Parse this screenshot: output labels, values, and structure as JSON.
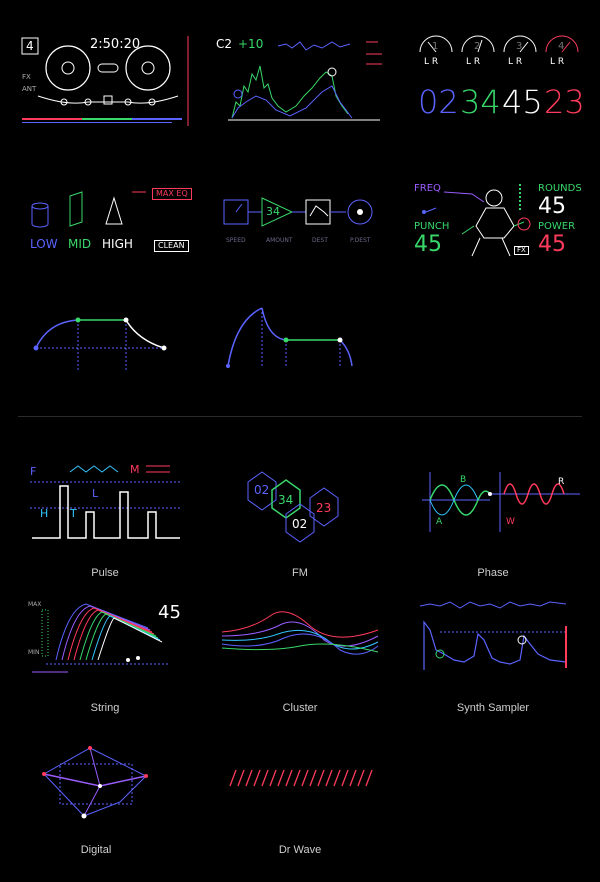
{
  "colors": {
    "white": "#ffffff",
    "blue": "#5b63ff",
    "green": "#38d86a",
    "red": "#ff3b5c",
    "purple": "#9a5cff",
    "cyan": "#33c6ff",
    "gray": "#6a6a8a"
  },
  "tape": {
    "track": "4",
    "time": "2:50:20",
    "label1": "FX",
    "label2": "ANT"
  },
  "piano": {
    "note": "C2",
    "offset": "+10"
  },
  "meters": {
    "channels": [
      "1",
      "2",
      "3",
      "4"
    ],
    "lr": "L R",
    "values": [
      "02",
      "34",
      "45",
      "23"
    ]
  },
  "eq": {
    "low": "LOW",
    "mid": "MID",
    "high": "HIGH",
    "max_eq": "MAX EQ",
    "clean": "CLEAN"
  },
  "modulation": {
    "value": "34",
    "speed": "SPEED",
    "amount": "AMOUNT",
    "dest": "DEST",
    "pdest": "P.DEST"
  },
  "boxer": {
    "freq": "FREQ",
    "punch": "PUNCH",
    "punch_value": "45",
    "rounds": "ROUNDS",
    "rounds_value": "45",
    "power": "POWER",
    "power_value": "45",
    "fx": "FX"
  },
  "pulse": {
    "f": "F",
    "m": "M",
    "h": "H",
    "t": "T",
    "l": "L"
  },
  "fm": {
    "values": [
      "02",
      "34",
      "02",
      "23"
    ]
  },
  "phase": {
    "a": "A",
    "b": "B",
    "r": "R",
    "w": "W"
  },
  "string": {
    "max": "MAX",
    "min": "MIN",
    "value": "45"
  },
  "captions": [
    "Pulse",
    "FM",
    "Phase",
    "String",
    "Cluster",
    "Synth Sampler",
    "Digital",
    "Dr Wave"
  ]
}
